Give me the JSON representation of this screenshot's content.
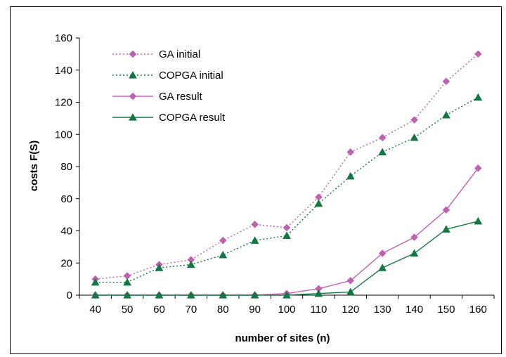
{
  "chart_data": {
    "type": "line",
    "title": "",
    "xlabel": "number of sites (n)",
    "ylabel": "costs F(S)",
    "categories": [
      "40",
      "50",
      "60",
      "70",
      "80",
      "90",
      "100",
      "110",
      "120",
      "130",
      "140",
      "150",
      "160"
    ],
    "ylim": [
      0,
      160
    ],
    "yticks": [
      0,
      20,
      40,
      60,
      80,
      100,
      120,
      140,
      160
    ],
    "grid": false,
    "legend_position": "top-left",
    "series": [
      {
        "name": "GA initial",
        "values": [
          10,
          12,
          19,
          22,
          34,
          44,
          42,
          61,
          89,
          98,
          109,
          133,
          150
        ],
        "color": "#c060b0",
        "marker": "diamond",
        "dash": "dotted"
      },
      {
        "name": "COPGA initial",
        "values": [
          8,
          8,
          17,
          19,
          25,
          34,
          37,
          57,
          74,
          89,
          98,
          112,
          123
        ],
        "color": "#107840",
        "marker": "triangle",
        "dash": "dotted"
      },
      {
        "name": "GA result",
        "values": [
          0,
          0,
          0,
          0,
          0,
          0,
          1,
          4,
          9,
          26,
          36,
          53,
          79
        ],
        "color": "#c060b0",
        "marker": "diamond",
        "dash": "solid"
      },
      {
        "name": "COPGA result",
        "values": [
          0,
          0,
          0,
          0,
          0,
          0,
          0,
          1,
          2,
          17,
          26,
          41,
          46
        ],
        "color": "#107840",
        "marker": "triangle",
        "dash": "solid"
      }
    ]
  }
}
